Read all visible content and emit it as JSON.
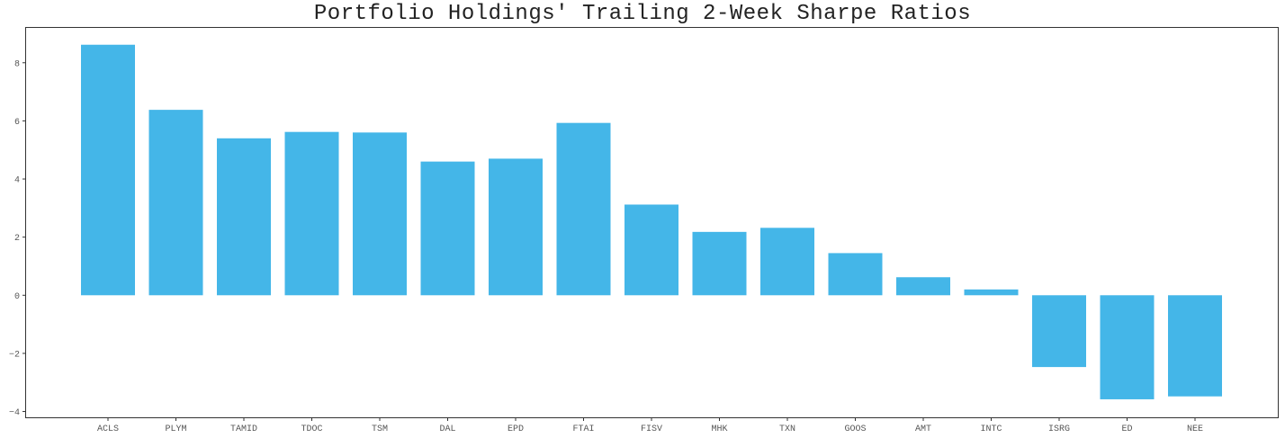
{
  "chart_data": {
    "type": "bar",
    "title": "Portfolio Holdings' Trailing 2-Week Sharpe Ratios",
    "xlabel": "",
    "ylabel": "",
    "categories": [
      "ACLS",
      "PLYM",
      "TAMID",
      "TDOC",
      "TSM",
      "DAL",
      "EPD",
      "FTAI",
      "FISV",
      "MHK",
      "TXN",
      "GOOS",
      "AMT",
      "INTC",
      "ISRG",
      "ED",
      "NEE"
    ],
    "values": [
      8.62,
      6.38,
      5.4,
      5.62,
      5.6,
      4.6,
      4.7,
      5.93,
      3.12,
      2.18,
      2.32,
      1.45,
      0.62,
      0.2,
      -2.47,
      -3.58,
      -3.48
    ],
    "ylim": [
      -4.2,
      9.2
    ],
    "yticks": [
      -4,
      -2,
      0,
      2,
      4,
      6,
      8
    ],
    "grid": false,
    "legend": "none",
    "bar_color": "#44b6e8"
  }
}
